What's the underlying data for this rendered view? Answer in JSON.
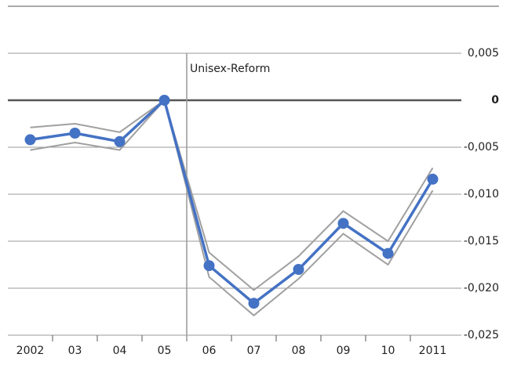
{
  "chart_data": {
    "type": "line",
    "categories": [
      "2002",
      "03",
      "04",
      "05",
      "06",
      "07",
      "08",
      "09",
      "10",
      "2011"
    ],
    "series": [
      {
        "color": "#a0a0a0",
        "values": [
          -0.0029,
          -0.0025,
          -0.0034,
          0,
          -0.0162,
          -0.0202,
          -0.0166,
          -0.0118,
          -0.015,
          -0.0072
        ]
      },
      {
        "color": "#a0a0a0",
        "values": [
          -0.0053,
          -0.0045,
          -0.0053,
          0,
          -0.0188,
          -0.0229,
          -0.019,
          -0.0142,
          -0.0175,
          -0.0096
        ]
      },
      {
        "color": "#4472c4",
        "markers": true,
        "values": [
          -0.0042,
          -0.0035,
          -0.0044,
          0,
          -0.0176,
          -0.0216,
          -0.018,
          -0.0131,
          -0.0163,
          -0.0084
        ]
      }
    ],
    "ylim": [
      -0.025,
      0.01
    ],
    "yticks": [
      {
        "value": 0.005,
        "label": "0,005"
      },
      0,
      {
        "value": -0.005,
        "label": "-0,005"
      },
      {
        "value": -0.01,
        "label": "-0,010"
      },
      {
        "value": -0.015,
        "label": "-0,015"
      },
      {
        "value": -0.02,
        "label": "-0,020"
      },
      {
        "value": -0.025,
        "label": "-0,025"
      }
    ],
    "grid": true,
    "annotation": {
      "text": "Unisex-Reform",
      "after_category": "05"
    }
  }
}
